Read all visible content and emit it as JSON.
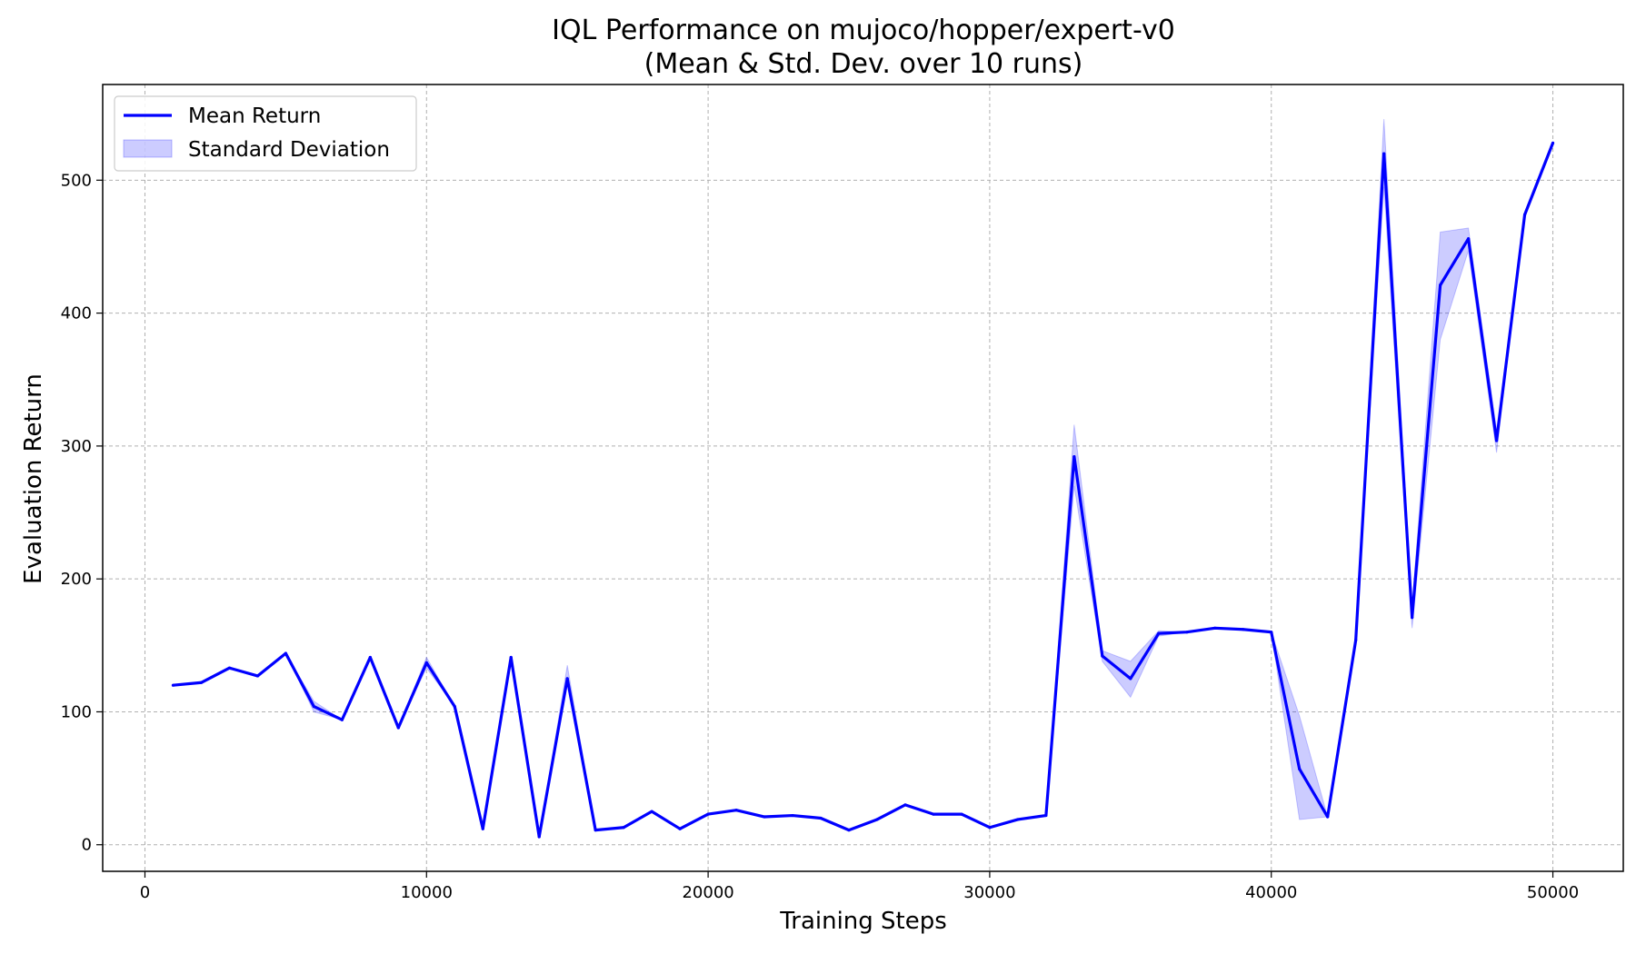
{
  "chart_data": {
    "type": "line",
    "title": "IQL Performance on mujoco/hopper/expert-v0",
    "subtitle": "(Mean & Std. Dev. over 10 runs)",
    "xlabel": "Training Steps",
    "ylabel": "Evaluation Return",
    "xlim": [
      -1500,
      52500
    ],
    "ylim": [
      -20,
      572
    ],
    "xticks": [
      0,
      10000,
      20000,
      30000,
      40000,
      50000
    ],
    "yticks": [
      0,
      100,
      200,
      300,
      400,
      500
    ],
    "grid": true,
    "legend_position": "top-left",
    "x": [
      1000,
      2000,
      3000,
      4000,
      5000,
      6000,
      7000,
      8000,
      9000,
      10000,
      11000,
      12000,
      13000,
      14000,
      15000,
      16000,
      17000,
      18000,
      19000,
      20000,
      21000,
      22000,
      23000,
      24000,
      25000,
      26000,
      27000,
      28000,
      29000,
      30000,
      31000,
      32000,
      33000,
      34000,
      35000,
      36000,
      37000,
      38000,
      39000,
      40000,
      41000,
      42000,
      43000,
      44000,
      45000,
      46000,
      47000,
      48000,
      49000,
      50000
    ],
    "series": [
      {
        "name": "Mean Return",
        "color": "#0000ff",
        "values": [
          120,
          122,
          133,
          127,
          144,
          104,
          94,
          141,
          88,
          137,
          104,
          12,
          141,
          6,
          125,
          11,
          13,
          25,
          12,
          23,
          26,
          21,
          22,
          20,
          11,
          19,
          30,
          23,
          23,
          13,
          19,
          22,
          292,
          142,
          125,
          159,
          160,
          163,
          162,
          160,
          57,
          21,
          154,
          520,
          171,
          421,
          456,
          304,
          474,
          528
        ]
      }
    ],
    "band": {
      "name": "Standard Deviation",
      "color": "#0000ff",
      "lower": [
        120,
        122,
        133,
        127,
        144,
        100,
        94,
        141,
        88,
        133,
        104,
        12,
        141,
        6,
        120,
        11,
        13,
        25,
        12,
        23,
        26,
        21,
        22,
        20,
        11,
        19,
        30,
        23,
        23,
        13,
        19,
        22,
        270,
        138,
        111,
        157,
        160,
        163,
        162,
        160,
        19,
        21,
        154,
        495,
        163,
        380,
        447,
        295,
        474,
        528
      ],
      "upper": [
        120,
        122,
        133,
        127,
        144,
        108,
        94,
        141,
        88,
        141,
        104,
        12,
        141,
        6,
        135,
        11,
        13,
        25,
        12,
        23,
        26,
        21,
        22,
        20,
        11,
        19,
        30,
        23,
        23,
        13,
        19,
        22,
        316,
        146,
        138,
        161,
        160,
        163,
        162,
        160,
        97,
        21,
        154,
        546,
        179,
        461,
        464,
        312,
        474,
        528
      ]
    }
  }
}
